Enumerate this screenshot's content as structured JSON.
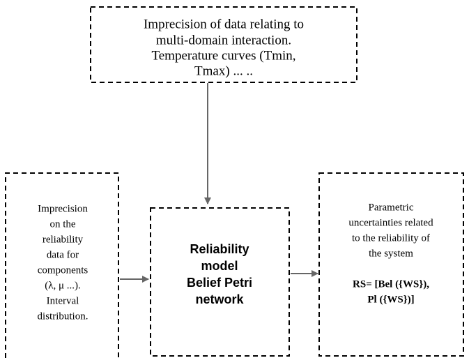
{
  "nodes": [
    {
      "lines": [
        "Imprecision of data relating to",
        "multi-domain interaction.",
        "Temperature curves (Tmin,",
        "Tmax) ... .."
      ]
    },
    {
      "lines": [
        "Imprecision",
        "on the",
        "reliability",
        "data for",
        "components",
        "(λ, μ ...).",
        "Interval",
        "distribution."
      ]
    },
    {
      "lines": [
        "Reliability",
        "model",
        "Belief Petri",
        "network"
      ]
    },
    {
      "lines": [
        "Parametric",
        "uncertainties related",
        "to the reliability of",
        "the system",
        "RS= [Bel ({WS}),",
        "Pl ({WS})]"
      ]
    }
  ]
}
